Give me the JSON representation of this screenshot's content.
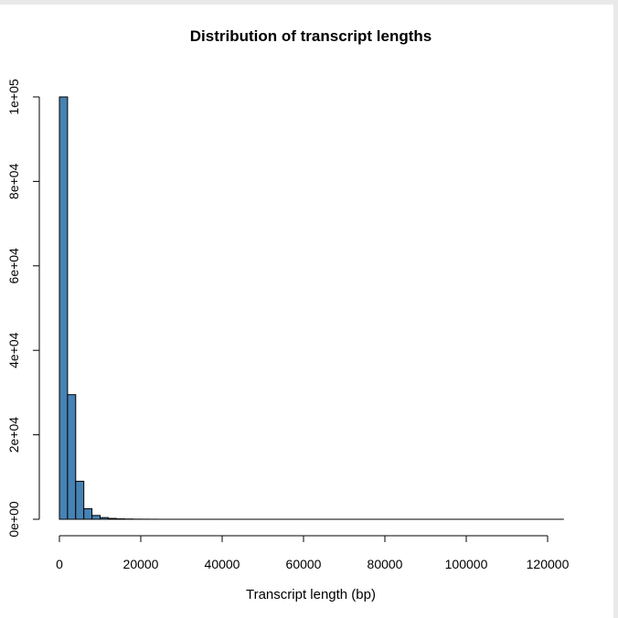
{
  "chart_data": {
    "type": "bar",
    "title": "Distribution of transcript lengths",
    "xlabel": "Transcript length (bp)",
    "ylabel": "",
    "bin_width": 2000,
    "x_start": 0,
    "x_end": 124000,
    "xlim": [
      0,
      124000
    ],
    "ylim": [
      0,
      100000
    ],
    "x_ticks": [
      0,
      20000,
      40000,
      60000,
      80000,
      100000,
      120000
    ],
    "x_tick_labels": [
      "0",
      "20000",
      "40000",
      "60000",
      "80000",
      "100000",
      "120000"
    ],
    "y_ticks": [
      0,
      20000,
      40000,
      60000,
      80000,
      100000
    ],
    "y_tick_labels": [
      "0e+00",
      "2e+04",
      "4e+04",
      "6e+04",
      "8e+04",
      "1e+05"
    ],
    "values": [
      100000,
      29500,
      9000,
      2500,
      900,
      400,
      200,
      100,
      60,
      30,
      20,
      10
    ],
    "bar_color": "#4682b4",
    "grid": false
  }
}
